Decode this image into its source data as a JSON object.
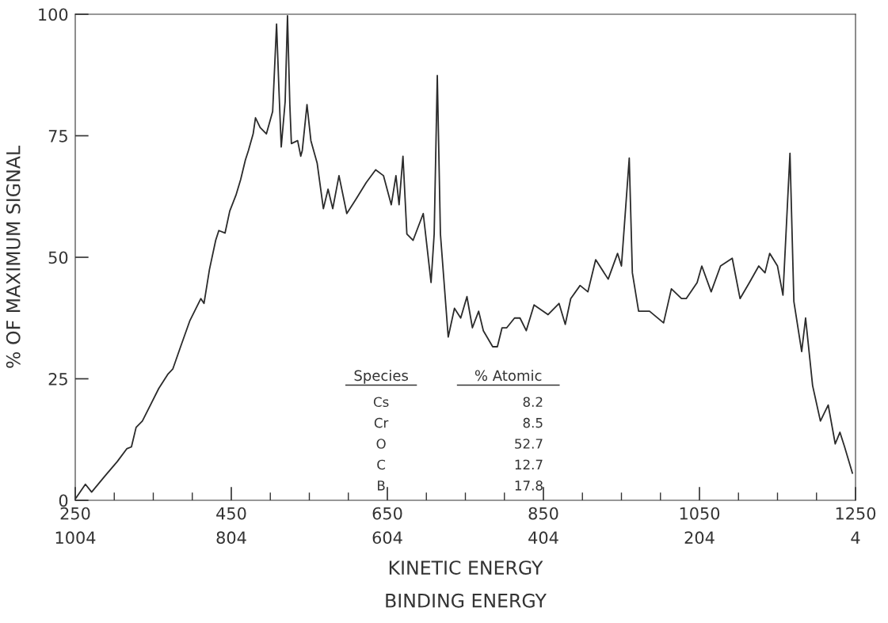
{
  "chart_data": {
    "type": "line",
    "xlabel": "KINETIC ENERGY",
    "x2label": "BINDING ENERGY",
    "x2lim": [
      1004,
      4
    ],
    "x2ticks": [
      1004,
      804,
      604,
      404,
      204,
      4
    ],
    "ylabel": "% OF MAXIMUM SIGNAL",
    "xlim": [
      250,
      1250
    ],
    "ylim": [
      0,
      100
    ],
    "xticks": [
      250,
      450,
      650,
      850,
      1050,
      1250
    ],
    "yticks": [
      0,
      25,
      50,
      75,
      100
    ],
    "grid": false,
    "marker": "none",
    "line_style": "solid",
    "annotations": [
      "Species",
      "% Atomic",
      "Cs",
      "8.2",
      "Cr",
      "8.5",
      "O",
      "52.7",
      "C",
      "12.7",
      "B",
      "17.8"
    ],
    "x": [
      251,
      263,
      271,
      288,
      304,
      316,
      322,
      328,
      336,
      357,
      369,
      375,
      385,
      397,
      411,
      415,
      422,
      430,
      434,
      442,
      448,
      456,
      462,
      468,
      472,
      478,
      481,
      487,
      495,
      503,
      508,
      511,
      514,
      519,
      522,
      525,
      527,
      535,
      539,
      541,
      547,
      552,
      560,
      568,
      574,
      580,
      588,
      598,
      610,
      623,
      635,
      645,
      655,
      661,
      665,
      670,
      675,
      683,
      696,
      706,
      710,
      714,
      718,
      728,
      736,
      744,
      752,
      759,
      767,
      773,
      785,
      791,
      797,
      803,
      813,
      820,
      828,
      838,
      856,
      870,
      878,
      885,
      897,
      907,
      917,
      933,
      945,
      950,
      960,
      964,
      972,
      986,
      1004,
      1014,
      1027,
      1033,
      1047,
      1053,
      1065,
      1077,
      1092,
      1102,
      1114,
      1126,
      1134,
      1140,
      1150,
      1157,
      1166,
      1171,
      1181,
      1186,
      1195,
      1205,
      1215,
      1224,
      1230,
      1236,
      1246
    ],
    "series": [
      {
        "color": "#2b2b2b",
        "values": [
          0.5,
          3.3,
          1.7,
          5,
          8,
          10.6,
          11,
          15,
          16.3,
          23,
          26,
          27,
          31.6,
          37,
          41.5,
          40.5,
          47.5,
          53.5,
          55.5,
          55,
          59.5,
          62.8,
          66,
          70,
          72,
          75.4,
          78.7,
          76.7,
          75.4,
          80,
          98,
          84.7,
          72.7,
          82,
          99.7,
          81.4,
          73.4,
          74,
          70.8,
          72,
          81.4,
          74,
          69.4,
          60,
          64,
          60,
          66.8,
          59,
          62,
          65.4,
          68,
          66.8,
          60.8,
          66.8,
          60.8,
          70.8,
          54.8,
          53.5,
          59,
          44.8,
          54.8,
          87.4,
          54.8,
          33.6,
          39.5,
          37.5,
          41.9,
          35.5,
          38.9,
          34.9,
          31.6,
          31.6,
          35.5,
          35.5,
          37.5,
          37.5,
          34.9,
          40.2,
          38.2,
          40.5,
          36.2,
          41.5,
          44.2,
          42.9,
          49.5,
          45.5,
          50.8,
          48.2,
          70.4,
          46.8,
          38.9,
          38.9,
          36.5,
          43.5,
          41.5,
          41.5,
          44.8,
          48.2,
          42.9,
          48.2,
          49.8,
          41.5,
          44.8,
          48.2,
          46.8,
          50.8,
          48.2,
          42.2,
          71.4,
          40.9,
          30.6,
          37.5,
          23.6,
          16.3,
          19.6,
          11.6,
          14,
          11,
          5.6
        ]
      }
    ]
  }
}
